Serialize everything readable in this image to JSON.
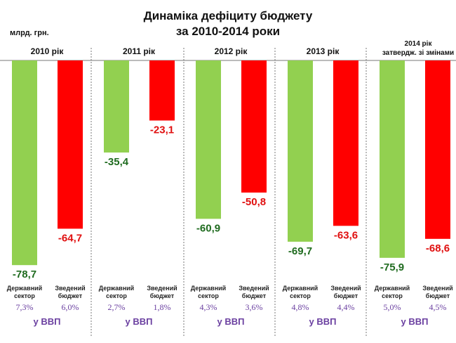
{
  "chart_data": {
    "type": "bar",
    "title": "Динаміка дефіциту бюджету",
    "subtitle": "за 2010-2014 роки",
    "ylabel": "млрд. грн.",
    "ylim": [
      -80,
      0
    ],
    "grid": false,
    "series_labels": [
      "Державний сектор",
      "Зведений бюджет"
    ],
    "gdp_label": "у ВВП",
    "colors": {
      "state": "#92D050",
      "consolidated": "#FF0000",
      "state_text": "#1F6B1F",
      "consolidated_text": "#E01010",
      "pct_text": "#6A3FA0"
    },
    "categories": [
      {
        "label": "2010 рік",
        "sublabel": ""
      },
      {
        "label": "2011 рік",
        "sublabel": ""
      },
      {
        "label": "2012 рік",
        "sublabel": ""
      },
      {
        "label": "2013 рік",
        "sublabel": ""
      },
      {
        "label": "2014 рік",
        "sublabel": "затвердж. зі змінами"
      }
    ],
    "series": [
      {
        "name": "Державний сектор",
        "values": [
          -78.7,
          -35.4,
          -60.9,
          -69.7,
          -75.9
        ],
        "labels": [
          "-78,7",
          "-35,4",
          "-60,9",
          "-69,7",
          "-75,9"
        ],
        "gdp_pct": [
          "7,3%",
          "2,7%",
          "4,3%",
          "4,8%",
          "5,0%"
        ]
      },
      {
        "name": "Зведений бюджет",
        "values": [
          -64.7,
          -23.1,
          -50.8,
          -63.6,
          -68.6
        ],
        "labels": [
          "-64,7",
          "-23,1",
          "-50,8",
          "-63,6",
          "-68,6"
        ],
        "gdp_pct": [
          "6,0%",
          "1,8%",
          "3,6%",
          "4,4%",
          "4,5%"
        ]
      }
    ],
    "series_label_lines": [
      [
        "Державний",
        "сектор"
      ],
      [
        "Зведений",
        "бюджет"
      ]
    ]
  }
}
